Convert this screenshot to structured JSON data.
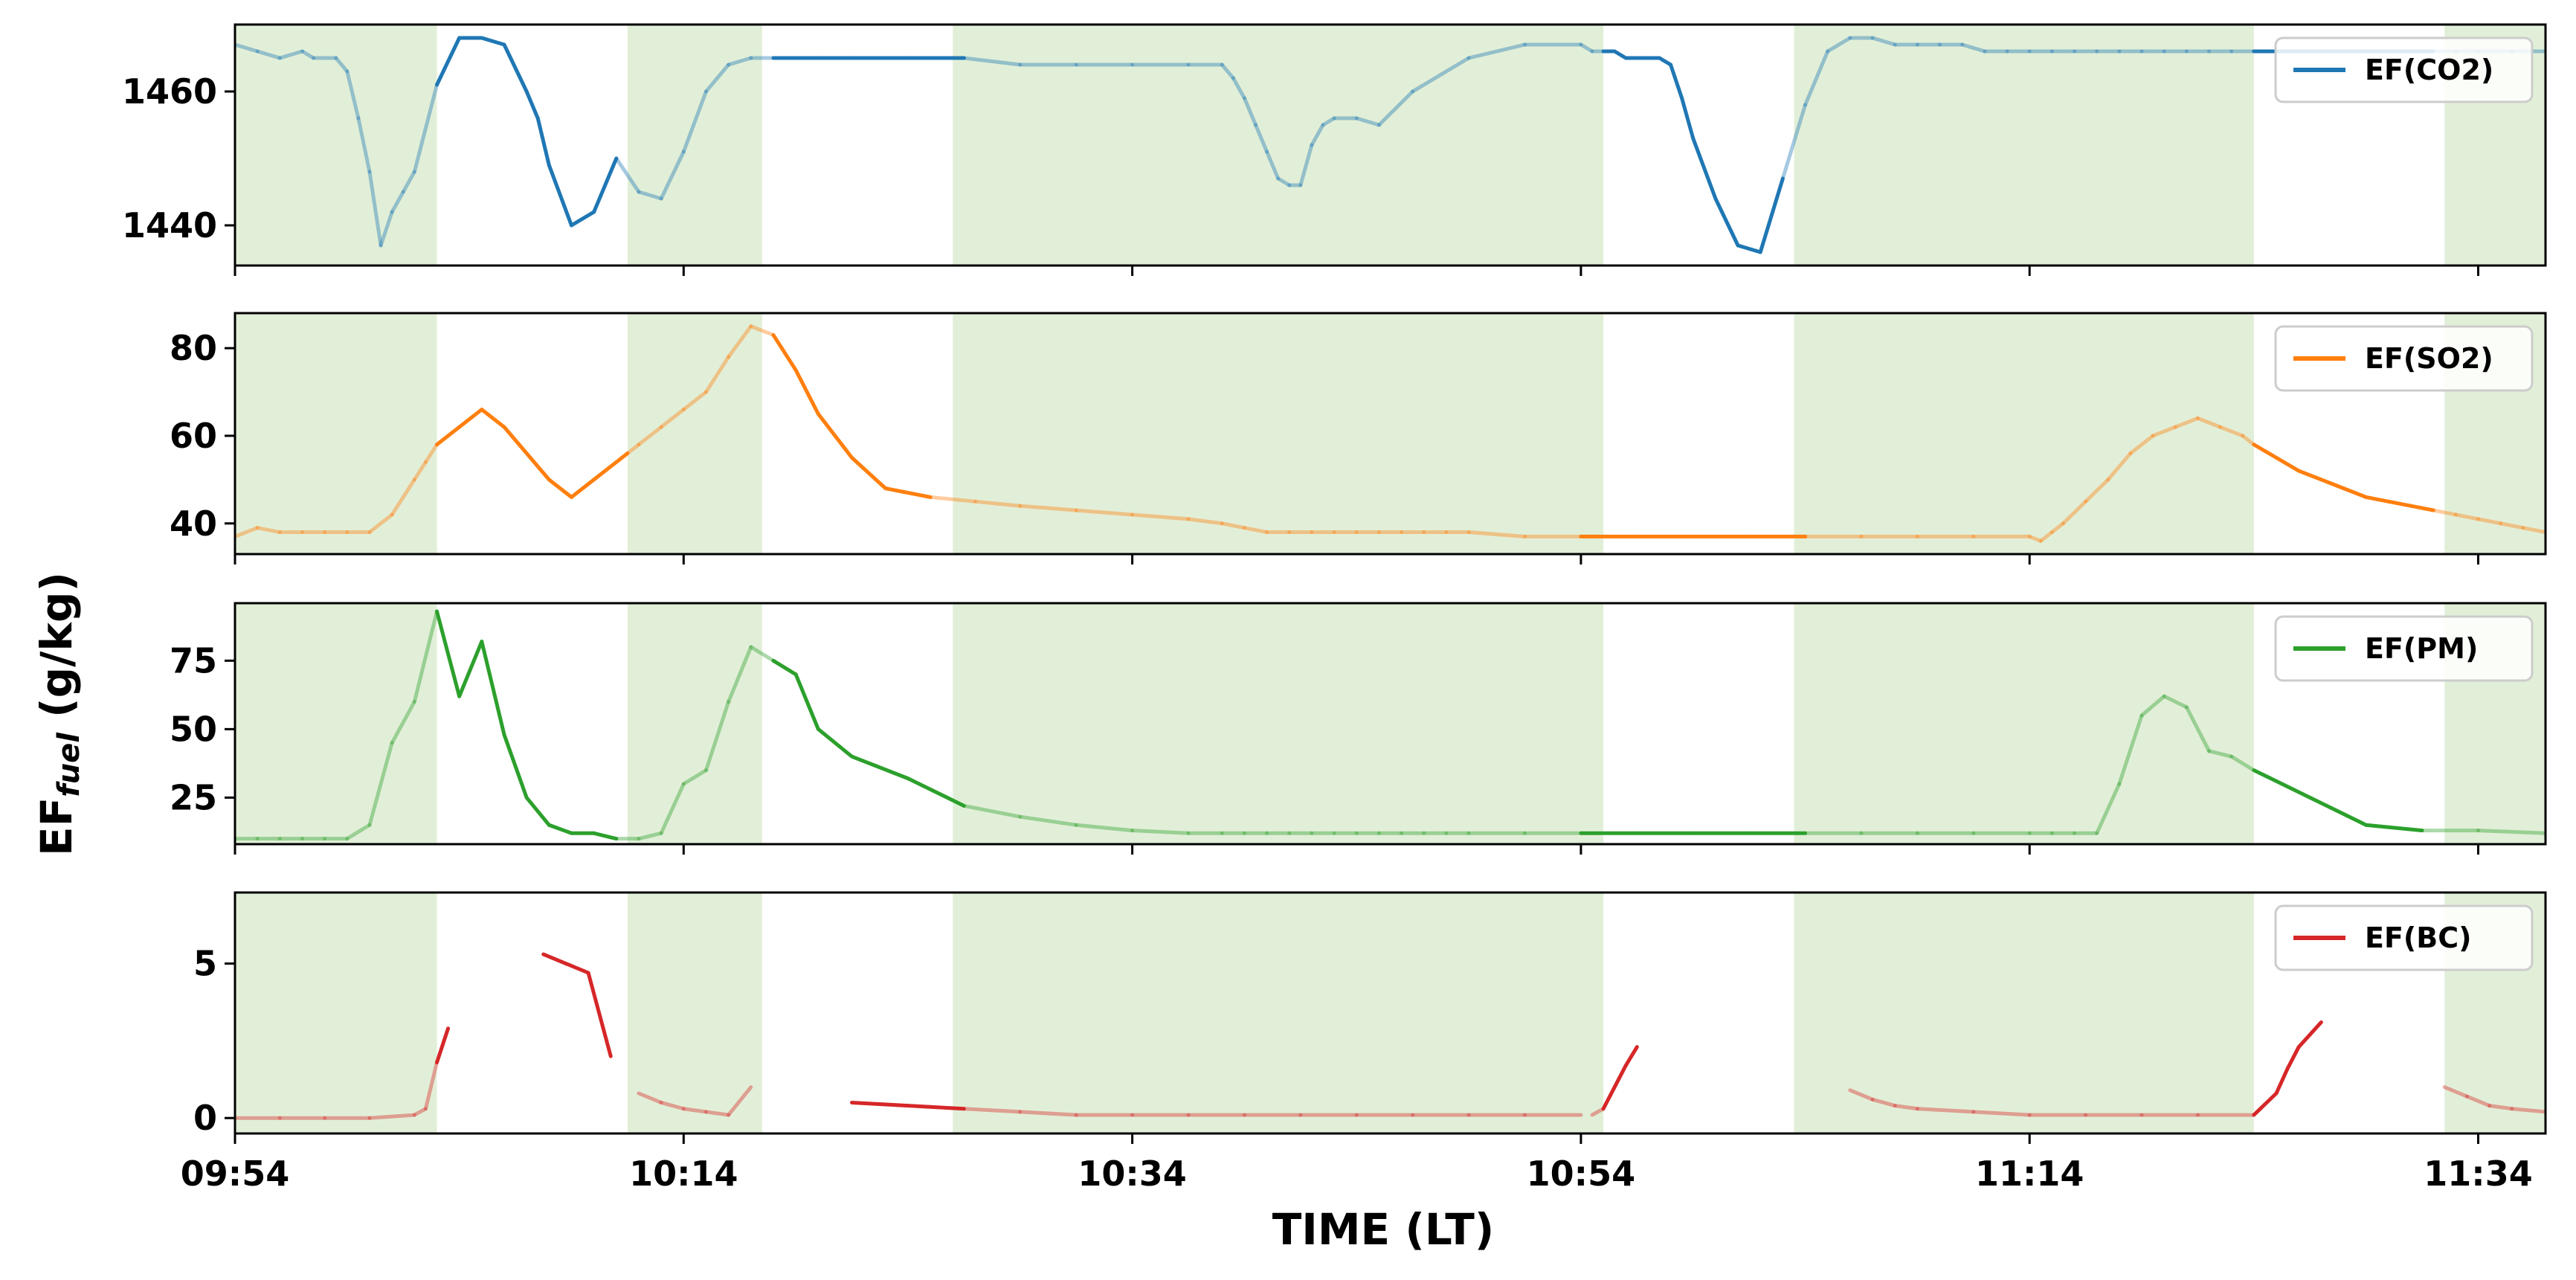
{
  "figure": {
    "ylabel_main": "EF",
    "ylabel_sub": "fuel",
    "ylabel_unit": " (g/kg)",
    "xlabel": "TIME (LT)",
    "xticks": [
      "09:54",
      "10:14",
      "10:34",
      "10:54",
      "11:14",
      "11:34"
    ]
  },
  "chart_data": [
    {
      "type": "line",
      "series": [
        {
          "name": "EF(CO2)",
          "color": "#1f77b4"
        }
      ],
      "legend_position": "top-right",
      "ylim": [
        1434,
        1470
      ],
      "yticks": [
        1440,
        1460
      ],
      "x": [
        0,
        2,
        4,
        6,
        7,
        9,
        10,
        11,
        12,
        13,
        14,
        15,
        16,
        18,
        20,
        22,
        24,
        26,
        27,
        28,
        30,
        32,
        34,
        36,
        38,
        40,
        42,
        44,
        46,
        48,
        50,
        52,
        55,
        60,
        65,
        70,
        75,
        80,
        85,
        88,
        89,
        90,
        91,
        92,
        93,
        94,
        95,
        96,
        97,
        98,
        100,
        102,
        105,
        110,
        115,
        120,
        121,
        122,
        123,
        124,
        125,
        126,
        127,
        128,
        129,
        130,
        132,
        134,
        136,
        138,
        140,
        142,
        144,
        146,
        148,
        150,
        152,
        154,
        156,
        158,
        160,
        162,
        164,
        166,
        168,
        170,
        172,
        174,
        176,
        178,
        180,
        182,
        184,
        186,
        188,
        190,
        192,
        194,
        196,
        198,
        200,
        203,
        206
      ],
      "values": [
        1467,
        1466,
        1465,
        1466,
        1465,
        1465,
        1463,
        1456,
        1448,
        1437,
        1442,
        1445,
        1448,
        1461,
        1468,
        1468,
        1467,
        1460,
        1456,
        1449,
        1440,
        1442,
        1450,
        1445,
        1444,
        1451,
        1460,
        1464,
        1465,
        1465,
        1465,
        1465,
        1465,
        1465,
        1465,
        1464,
        1464,
        1464,
        1464,
        1464,
        1462,
        1459,
        1455,
        1451,
        1447,
        1446,
        1446,
        1452,
        1455,
        1456,
        1456,
        1455,
        1460,
        1465,
        1467,
        1467,
        1466,
        1466,
        1466,
        1465,
        1465,
        1465,
        1465,
        1464,
        1459,
        1453,
        1444,
        1437,
        1436,
        1447,
        1458,
        1466,
        1468,
        1468,
        1467,
        1467,
        1467,
        1467,
        1466,
        1466,
        1466,
        1466,
        1466,
        1466,
        1466,
        1466,
        1466,
        1466,
        1466,
        1466,
        1466,
        1466,
        1466,
        1466,
        1466,
        1466,
        1466,
        1466,
        1466,
        1466,
        1466,
        1466,
        1466
      ]
    },
    {
      "type": "line",
      "series": [
        {
          "name": "EF(SO2)",
          "color": "#ff7f0e"
        }
      ],
      "legend_position": "top-right",
      "ylim": [
        33,
        88
      ],
      "yticks": [
        40,
        60,
        80
      ],
      "x": [
        0,
        2,
        4,
        6,
        8,
        10,
        12,
        14,
        16,
        17,
        18,
        19,
        20,
        22,
        24,
        26,
        28,
        30,
        32,
        34,
        35,
        36,
        38,
        40,
        42,
        44,
        46,
        48,
        50,
        52,
        55,
        58,
        62,
        66,
        70,
        75,
        80,
        85,
        88,
        90,
        92,
        94,
        96,
        98,
        100,
        102,
        104,
        106,
        108,
        110,
        115,
        120,
        125,
        130,
        135,
        140,
        145,
        150,
        155,
        160,
        161,
        162,
        163,
        165,
        167,
        169,
        171,
        173,
        175,
        177,
        179,
        180,
        182,
        184,
        186,
        188,
        190,
        192,
        194,
        196,
        198,
        200,
        202,
        204,
        206
      ],
      "values": [
        37,
        39,
        38,
        38,
        38,
        38,
        38,
        42,
        50,
        54,
        58,
        60,
        62,
        66,
        62,
        56,
        50,
        46,
        50,
        54,
        56,
        58,
        62,
        66,
        70,
        78,
        85,
        83,
        75,
        65,
        55,
        48,
        46,
        45,
        44,
        43,
        42,
        41,
        40,
        39,
        38,
        38,
        38,
        38,
        38,
        38,
        38,
        38,
        38,
        38,
        37,
        37,
        37,
        37,
        37,
        37,
        37,
        37,
        37,
        37,
        36,
        38,
        40,
        45,
        50,
        56,
        60,
        62,
        64,
        62,
        60,
        58,
        55,
        52,
        50,
        48,
        46,
        45,
        44,
        43,
        42,
        41,
        40,
        39,
        38
      ]
    },
    {
      "type": "line",
      "series": [
        {
          "name": "EF(PM)",
          "color": "#2ca02c"
        }
      ],
      "legend_position": "top-right",
      "ylim": [
        8,
        96
      ],
      "yticks": [
        25,
        50,
        75
      ],
      "x": [
        0,
        2,
        4,
        6,
        8,
        10,
        12,
        14,
        16,
        18,
        20,
        22,
        24,
        26,
        28,
        30,
        32,
        34,
        36,
        38,
        40,
        42,
        44,
        46,
        48,
        50,
        52,
        55,
        60,
        65,
        70,
        75,
        80,
        85,
        88,
        90,
        92,
        94,
        96,
        98,
        100,
        102,
        104,
        106,
        108,
        110,
        115,
        120,
        125,
        130,
        135,
        140,
        145,
        150,
        155,
        160,
        162,
        164,
        166,
        168,
        170,
        172,
        174,
        176,
        178,
        180,
        185,
        190,
        195,
        200,
        206
      ],
      "values": [
        10,
        10,
        10,
        10,
        10,
        10,
        15,
        45,
        60,
        93,
        62,
        82,
        48,
        25,
        15,
        12,
        12,
        10,
        10,
        12,
        30,
        35,
        60,
        80,
        75,
        70,
        50,
        40,
        32,
        22,
        18,
        15,
        13,
        12,
        12,
        12,
        12,
        12,
        12,
        12,
        12,
        12,
        12,
        12,
        12,
        12,
        12,
        12,
        12,
        12,
        12,
        12,
        12,
        12,
        12,
        12,
        12,
        12,
        12,
        30,
        55,
        62,
        58,
        42,
        40,
        35,
        25,
        15,
        13,
        13,
        12
      ]
    },
    {
      "type": "line",
      "series": [
        {
          "name": "EF(BC)",
          "color": "#d62728"
        }
      ],
      "legend_position": "top-right",
      "ylim": [
        -0.5,
        7.3
      ],
      "yticks": [
        0,
        5
      ],
      "segments": [
        {
          "x": [
            0,
            4,
            8,
            12,
            16,
            17,
            18,
            19
          ],
          "values": [
            0,
            0,
            0,
            0,
            0.1,
            0.3,
            1.8,
            2.9
          ]
        },
        {
          "x": [
            27.5,
            29.5,
            31.5,
            33.5
          ],
          "values": [
            5.3,
            5.0,
            4.7,
            2.0
          ]
        },
        {
          "x": [
            36,
            38,
            40,
            42,
            44,
            46
          ],
          "values": [
            0.8,
            0.5,
            0.3,
            0.2,
            0.1,
            1.0
          ]
        },
        {
          "x": [
            55,
            60,
            65,
            70,
            75,
            80,
            85,
            90,
            95,
            100,
            105,
            110,
            115,
            120
          ],
          "values": [
            0.5,
            0.4,
            0.3,
            0.2,
            0.1,
            0.1,
            0.1,
            0.1,
            0.1,
            0.1,
            0.1,
            0.1,
            0.1,
            0.1
          ]
        },
        {
          "x": [
            121,
            122,
            123,
            124,
            125
          ],
          "values": [
            0.1,
            0.3,
            1.0,
            1.7,
            2.3
          ]
        },
        {
          "x": [
            144,
            146,
            148,
            150,
            155,
            160,
            165,
            170,
            175,
            180
          ],
          "values": [
            0.9,
            0.6,
            0.4,
            0.3,
            0.2,
            0.1,
            0.1,
            0.1,
            0.1,
            0.1
          ]
        },
        {
          "x": [
            180,
            182,
            183,
            184,
            185,
            186
          ],
          "values": [
            0.1,
            0.8,
            1.6,
            2.3,
            2.7,
            3.1
          ]
        },
        {
          "x": [
            197,
            199,
            201,
            203,
            206
          ],
          "values": [
            1.0,
            0.7,
            0.4,
            0.3,
            0.2
          ]
        }
      ]
    }
  ],
  "shading": {
    "color": "#e2efd8",
    "x_start": 0,
    "x_end": 206,
    "bands": [
      [
        0,
        18
      ],
      [
        35,
        47
      ],
      [
        64,
        122
      ],
      [
        139,
        180
      ],
      [
        197,
        206
      ]
    ]
  }
}
